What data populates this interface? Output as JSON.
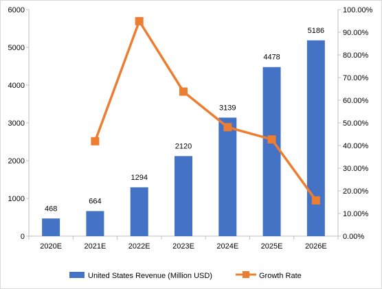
{
  "chart_data": {
    "type": "bar",
    "categories": [
      "2020E",
      "2021E",
      "2022E",
      "2023E",
      "2024E",
      "2025E",
      "2026E"
    ],
    "series": [
      {
        "name": "United States Revenue (Million USD)",
        "type": "bar",
        "axis": "left",
        "values": [
          468,
          664,
          1294,
          2120,
          3139,
          4478,
          5186
        ],
        "color": "#4472c4"
      },
      {
        "name": "Growth Rate",
        "type": "line",
        "axis": "right",
        "values": [
          null,
          41.9,
          94.9,
          63.8,
          48.1,
          42.7,
          15.8
        ],
        "color": "#ed7d31"
      }
    ],
    "data_labels": [
      "468",
      "664",
      "1294",
      "2120",
      "3139",
      "4478",
      "5186"
    ],
    "y_left": {
      "lim": [
        0,
        6000
      ],
      "ticks": [
        0,
        1000,
        2000,
        3000,
        4000,
        5000,
        6000
      ],
      "tick_labels": [
        "0",
        "1000",
        "2000",
        "3000",
        "4000",
        "5000",
        "6000"
      ]
    },
    "y_right": {
      "lim": [
        0,
        100
      ],
      "ticks": [
        0,
        10,
        20,
        30,
        40,
        50,
        60,
        70,
        80,
        90,
        100
      ],
      "tick_labels": [
        "0.00%",
        "10.00%",
        "20.00%",
        "30.00%",
        "40.00%",
        "50.00%",
        "60.00%",
        "70.00%",
        "80.00%",
        "90.00%",
        "100.00%"
      ]
    },
    "grid": false,
    "legend_position": "bottom"
  }
}
